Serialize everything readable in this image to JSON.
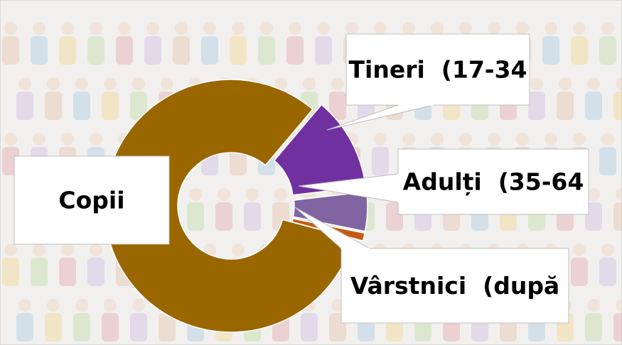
{
  "chart_data": {
    "type": "donut",
    "categories": [
      "Copii",
      "Tineri  (17-34",
      "Adulți  (35-64",
      "Vârstnici  (după"
    ],
    "values": [
      82,
      12,
      5,
      1
    ],
    "colors": [
      "#996600",
      "#7030a0",
      "#8064a2",
      "#c55a11"
    ]
  }
}
